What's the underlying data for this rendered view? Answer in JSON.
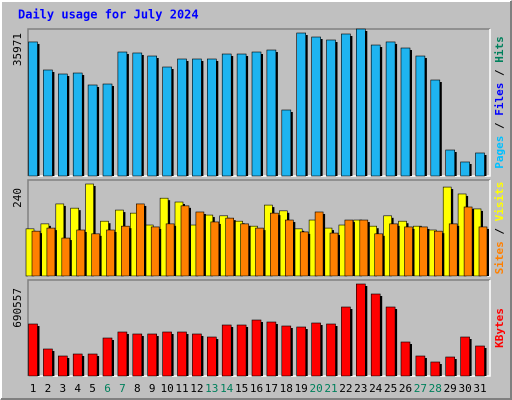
{
  "title": "Daily usage for July 2024",
  "categories": [
    "1",
    "2",
    "3",
    "4",
    "5",
    "6",
    "7",
    "8",
    "9",
    "10",
    "11",
    "12",
    "13",
    "14",
    "15",
    "16",
    "17",
    "18",
    "19",
    "20",
    "21",
    "22",
    "23",
    "24",
    "25",
    "26",
    "27",
    "28",
    "29",
    "30",
    "31"
  ],
  "category_colors": [
    "#000000",
    "#000000",
    "#000000",
    "#000000",
    "#000000",
    "#00805c",
    "#00805c",
    "#000000",
    "#000000",
    "#000000",
    "#000000",
    "#000000",
    "#00805c",
    "#00805c",
    "#000000",
    "#000000",
    "#000000",
    "#000000",
    "#000000",
    "#00805c",
    "#00805c",
    "#000000",
    "#000000",
    "#000000",
    "#000000",
    "#000000",
    "#00805c",
    "#00805c",
    "#000000",
    "#000000",
    "#000000"
  ],
  "chart_data": [
    {
      "type": "bar",
      "ylim": [
        0,
        35971
      ],
      "yticks": [
        35971
      ],
      "ylabel": [
        "Pages",
        " / ",
        "Files",
        " / ",
        "Hits"
      ],
      "ylabel_colors": [
        "#00c0ff",
        "#000000",
        "#0000ff",
        "#000000",
        "#00805c"
      ],
      "series": [
        {
          "color": "#1eb4f0",
          "values": [
            32800,
            25940,
            24960,
            25200,
            22270,
            22510,
            30340,
            30100,
            29360,
            26670,
            28630,
            28630,
            28630,
            29850,
            29850,
            30340,
            30830,
            16150,
            34990,
            34010,
            33280,
            34750,
            35971,
            32050,
            32800,
            31320,
            29360,
            23490,
            6360,
            3430,
            5630
          ]
        }
      ]
    },
    {
      "type": "bar",
      "ylim": [
        0,
        240
      ],
      "yticks": [
        240
      ],
      "ylabel": [
        "Sites",
        " / ",
        "Visits"
      ],
      "ylabel_colors": [
        "#ff8000",
        "#000000",
        "#ffff00"
      ],
      "series": [
        {
          "color": "#ffff00",
          "values": [
            123,
            136,
            188,
            177,
            240,
            143,
            172,
            164,
            133,
            203,
            193,
            133,
            159,
            157,
            143,
            130,
            185,
            170,
            123,
            146,
            125,
            133,
            146,
            130,
            157,
            143,
            130,
            120,
            232,
            214,
            175
          ]
        },
        {
          "color": "#ff8000",
          "values": [
            117,
            125,
            99,
            120,
            110,
            120,
            130,
            188,
            128,
            136,
            183,
            167,
            141,
            151,
            136,
            125,
            164,
            146,
            115,
            167,
            112,
            146,
            146,
            110,
            136,
            128,
            128,
            117,
            136,
            180,
            128
          ]
        }
      ]
    },
    {
      "type": "bar",
      "ylim": [
        0,
        690557
      ],
      "yticks": [
        690557
      ],
      "ylabel": [
        "KBytes"
      ],
      "ylabel_colors": [
        "#ff0000"
      ],
      "series": [
        {
          "color": "#ff0000",
          "values": [
            390300,
            202700,
            150100,
            165100,
            165100,
            285200,
            330300,
            315300,
            315300,
            330300,
            330300,
            315300,
            292700,
            382800,
            382800,
            420300,
            405300,
            375300,
            367800,
            397800,
            390300,
            517900,
            690557,
            615500,
            517900,
            255200,
            150100,
            105100,
            142600,
            292700,
            225200
          ]
        }
      ]
    }
  ]
}
